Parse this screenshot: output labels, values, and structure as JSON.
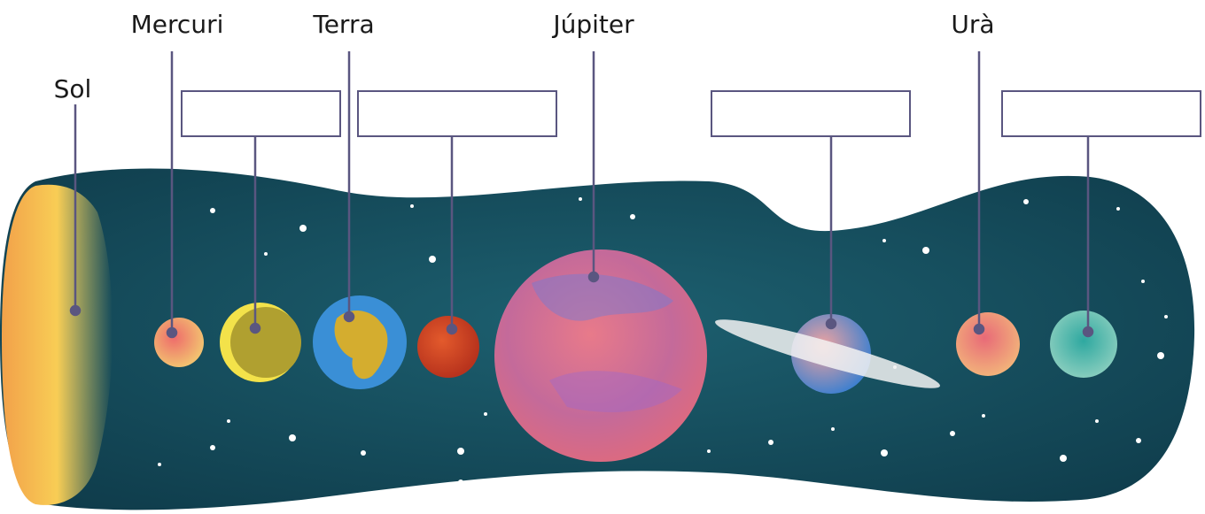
{
  "labels": {
    "sun": "Sol",
    "mercury": "Mercuri",
    "earth": "Terra",
    "jupiter": "Júpiter",
    "uranus": "Urà",
    "venus_blank": "",
    "mars_blank": "",
    "saturn_blank": "",
    "neptune_blank": ""
  },
  "colors": {
    "space": "#17505e",
    "space_dark": "#0f3a48",
    "sun": "#f6c14a",
    "leader_line": "#5a5680",
    "answer_box_border": "#5a5680"
  },
  "icons": [
    "sun-icon",
    "mercury-icon",
    "venus-icon",
    "earth-icon",
    "mars-icon",
    "jupiter-icon",
    "saturn-icon",
    "uranus-icon",
    "neptune-icon"
  ]
}
